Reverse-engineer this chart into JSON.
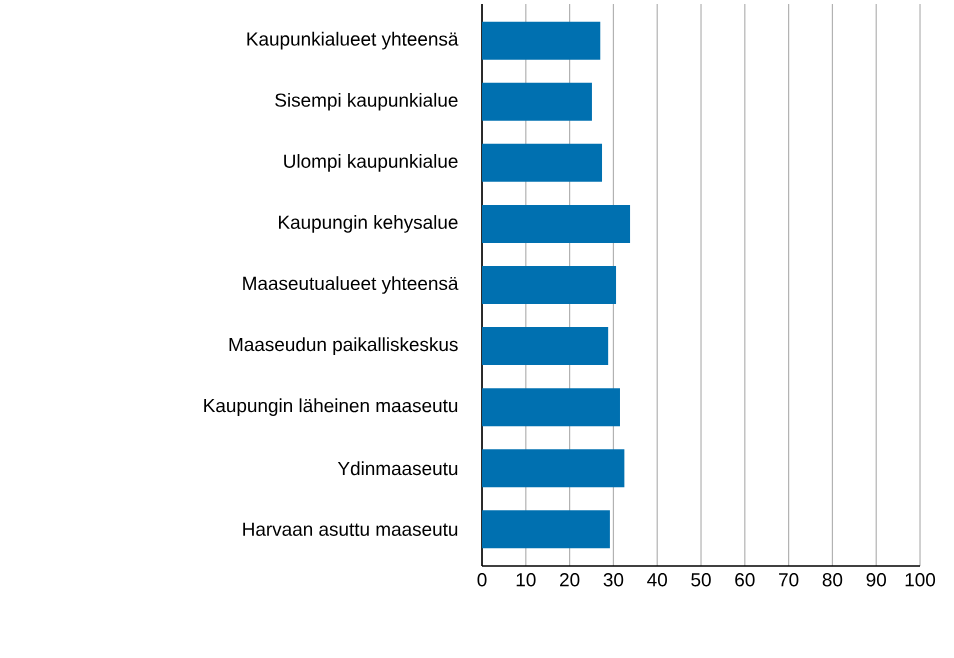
{
  "chart_data": {
    "type": "bar",
    "orientation": "horizontal",
    "categories": [
      "Kaupunkialueet yhteensä",
      "Sisempi kaupunkialue",
      "Ulompi kaupunkialue",
      "Kaupungin kehysalue",
      "Maaseutualueet yhteensä",
      "Maaseudun paikalliskeskus",
      "Kaupungin läheinen maaseutu",
      "Ydinmaaseutu",
      "Harvaan asuttu maaseutu"
    ],
    "values": [
      27.0,
      25.1,
      27.4,
      33.8,
      30.6,
      28.8,
      31.5,
      32.5,
      29.2
    ],
    "color": "#0070b0",
    "xlim": [
      0,
      100
    ],
    "xticks": [
      0,
      10,
      20,
      30,
      40,
      50,
      60,
      70,
      80,
      90,
      100
    ],
    "grid": "x"
  }
}
